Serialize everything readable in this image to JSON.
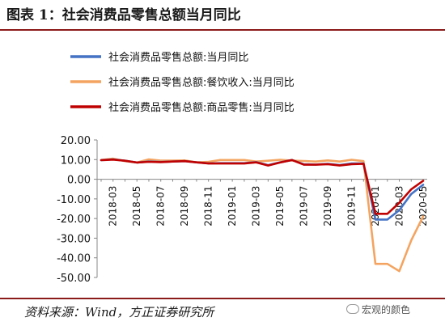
{
  "header": {
    "title": "图表 1：社会消费品零售总额当月同比"
  },
  "footer": {
    "source": "资料来源：Wind，方正证券研究所",
    "watermark": "宏观的颜色"
  },
  "chart_data": {
    "type": "line",
    "title": "",
    "xlabel": "",
    "ylabel": "",
    "ylim": [
      -50,
      20
    ],
    "yticks": [
      "20.00",
      "10.00",
      "0.00",
      "-10.00",
      "-20.00",
      "-30.00",
      "-40.00",
      "-50.00"
    ],
    "yticks_values": [
      20,
      10,
      0,
      -10,
      -20,
      -30,
      -40,
      -50
    ],
    "xtick_labels": [
      "2018-03",
      "2018-05",
      "2018-07",
      "2018-09",
      "2018-11",
      "2019-01",
      "2019-03",
      "2019-05",
      "2019-07",
      "2019-09",
      "2019-11",
      "2020-01",
      "2020-03",
      "2020-05"
    ],
    "x": [
      "2018-02",
      "2018-03",
      "2018-04",
      "2018-05",
      "2018-06",
      "2018-07",
      "2018-08",
      "2018-09",
      "2018-10",
      "2018-11",
      "2018-12",
      "2019-01",
      "2019-02",
      "2019-03",
      "2019-04",
      "2019-05",
      "2019-06",
      "2019-07",
      "2019-08",
      "2019-09",
      "2019-10",
      "2019-11",
      "2019-12",
      "2020-01",
      "2020-02",
      "2020-03",
      "2020-04",
      "2020-05"
    ],
    "legend_position": "top",
    "grid": false,
    "series": [
      {
        "name": "社会消费品零售总额:当月同比",
        "color": "#4472c4",
        "values": [
          9.7,
          10.1,
          9.4,
          8.5,
          9.0,
          8.8,
          9.0,
          9.2,
          8.6,
          8.1,
          8.2,
          8.2,
          8.2,
          8.7,
          7.2,
          8.6,
          9.8,
          7.6,
          7.5,
          7.8,
          7.2,
          8.0,
          8.0,
          -20.5,
          -20.5,
          -15.8,
          -7.5,
          -2.8
        ]
      },
      {
        "name": "社会消费品零售总额:餐饮收入:当月同比",
        "color": "#f4a460",
        "values": [
          9.8,
          10.5,
          9.2,
          8.5,
          10.1,
          9.5,
          9.5,
          9.6,
          8.6,
          8.9,
          9.8,
          9.8,
          9.8,
          9.0,
          9.4,
          9.9,
          9.5,
          9.3,
          9.0,
          9.6,
          9.0,
          9.9,
          9.2,
          -43.1,
          -43.1,
          -46.8,
          -31.1,
          -18.9
        ]
      },
      {
        "name": "社会消费品零售总额:商品零售:当月同比",
        "color": "#c00000",
        "values": [
          9.7,
          10.0,
          9.4,
          8.5,
          8.9,
          8.7,
          9.0,
          9.2,
          8.6,
          8.0,
          8.0,
          8.0,
          8.0,
          8.6,
          7.0,
          8.5,
          9.8,
          7.4,
          7.4,
          7.7,
          7.0,
          7.7,
          7.9,
          -17.6,
          -17.6,
          -12.0,
          -5.1,
          -0.8
        ]
      }
    ]
  }
}
